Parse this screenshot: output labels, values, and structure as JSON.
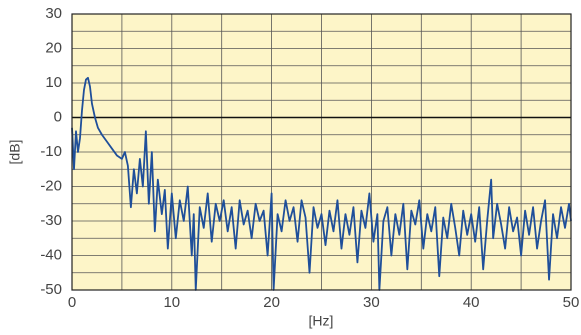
{
  "chart_data": {
    "type": "line",
    "xlabel": "[Hz]",
    "ylabel": "[dB]",
    "xlim": [
      0,
      50
    ],
    "ylim": [
      -50,
      30
    ],
    "xticks": [
      0,
      10,
      20,
      30,
      40,
      50
    ],
    "yticks": [
      -50,
      -40,
      -30,
      -20,
      -10,
      0,
      10,
      20,
      30
    ],
    "minor_xticks": [
      5,
      15,
      25,
      35,
      45
    ],
    "minor_yticks": [
      -45,
      -35,
      -25,
      -15,
      -5,
      5,
      15,
      25
    ],
    "grid": true,
    "zero_line": true,
    "background": "#fdf5c8",
    "series": [
      {
        "color": "#1f4f9a",
        "x": [
          0,
          0.2,
          0.4,
          0.6,
          0.8,
          1.0,
          1.2,
          1.4,
          1.6,
          1.8,
          2.0,
          2.3,
          2.6,
          3.0,
          3.5,
          4.0,
          4.5,
          5.0,
          5.3,
          5.6,
          5.9,
          6.2,
          6.5,
          6.8,
          7.1,
          7.4,
          7.7,
          8.0,
          8.3,
          8.6,
          9.0,
          9.3,
          9.6,
          10.0,
          10.4,
          10.8,
          11.2,
          11.6,
          12.0,
          12.2,
          12.4,
          12.8,
          13.2,
          13.6,
          14.0,
          14.4,
          14.8,
          15.2,
          15.6,
          16.0,
          16.4,
          16.8,
          17.2,
          17.6,
          18.0,
          18.4,
          18.8,
          19.2,
          19.6,
          20.0,
          20.2,
          20.6,
          21.0,
          21.4,
          21.8,
          22.2,
          22.6,
          23.0,
          23.4,
          23.8,
          24.2,
          24.6,
          25.0,
          25.4,
          25.8,
          26.2,
          26.6,
          27.0,
          27.4,
          27.8,
          28.2,
          28.6,
          29.0,
          29.4,
          29.8,
          30.2,
          30.6,
          30.8,
          31.2,
          31.6,
          32.0,
          32.4,
          32.8,
          33.2,
          33.6,
          34.0,
          34.4,
          34.8,
          35.2,
          35.6,
          36.0,
          36.4,
          36.8,
          37.2,
          37.6,
          38.0,
          38.4,
          38.8,
          39.2,
          39.6,
          40.0,
          40.4,
          40.8,
          41.2,
          41.6,
          42.0,
          42.2,
          42.6,
          43.0,
          43.4,
          43.8,
          44.2,
          44.6,
          45.0,
          45.4,
          45.8,
          46.2,
          46.6,
          47.0,
          47.4,
          47.8,
          48.2,
          48.6,
          49.0,
          49.4,
          49.8,
          50.0
        ],
        "values": [
          -3,
          -15,
          -4,
          -10,
          -6,
          2,
          8,
          11,
          11.5,
          9,
          4,
          0,
          -3,
          -5,
          -7,
          -9,
          -11,
          -12,
          -10,
          -14,
          -26,
          -15,
          -22,
          -12,
          -20,
          -4,
          -25,
          -10,
          -33,
          -18,
          -28,
          -21,
          -38,
          -22,
          -35,
          -24,
          -30,
          -20,
          -40,
          -28,
          -50,
          -26,
          -32,
          -22,
          -36,
          -25,
          -30,
          -24,
          -33,
          -26,
          -38,
          -24,
          -31,
          -27,
          -35,
          -25,
          -30,
          -27,
          -40,
          -22,
          -50,
          -28,
          -33,
          -24,
          -30,
          -26,
          -36,
          -24,
          -29,
          -45,
          -26,
          -32,
          -28,
          -37,
          -27,
          -33,
          -24,
          -38,
          -28,
          -34,
          -26,
          -42,
          -27,
          -32,
          -22,
          -36,
          -28,
          -50,
          -30,
          -26,
          -40,
          -28,
          -34,
          -25,
          -44,
          -27,
          -31,
          -24,
          -38,
          -28,
          -33,
          -26,
          -46,
          -29,
          -35,
          -25,
          -32,
          -40,
          -27,
          -34,
          -28,
          -36,
          -26,
          -44,
          -30,
          -18,
          -35,
          -25,
          -31,
          -38,
          -26,
          -33,
          -29,
          -40,
          -27,
          -34,
          -26,
          -38,
          -30,
          -24,
          -47,
          -28,
          -35,
          -26,
          -32,
          -25,
          -30
        ]
      }
    ]
  }
}
